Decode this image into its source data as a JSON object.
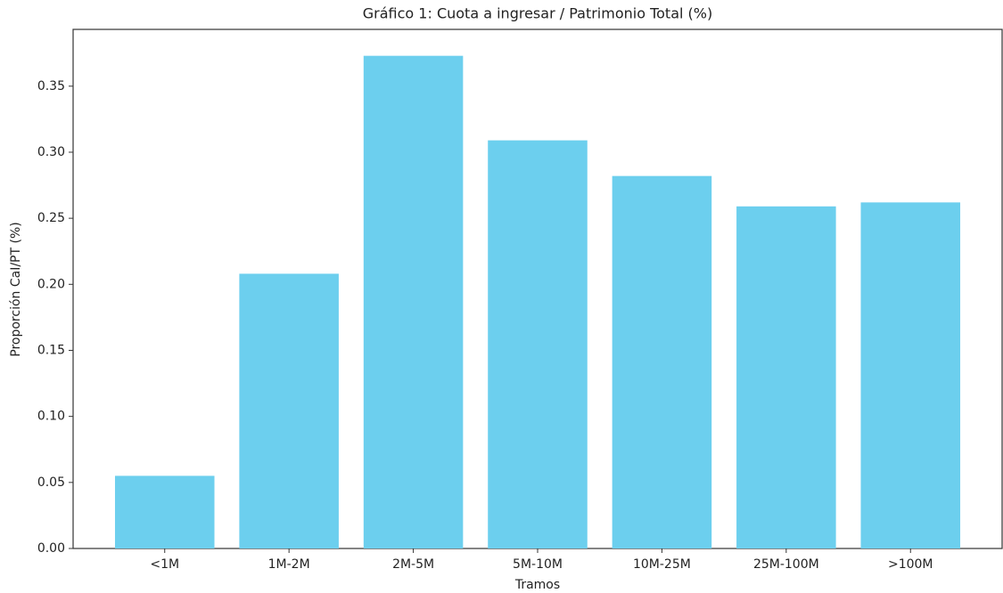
{
  "chart_data": {
    "type": "bar",
    "title": "Gráfico 1: Cuota a ingresar / Patrimonio Total (%)",
    "x_label": "Tramos",
    "y_label": "Proporción CaI/PT (%)",
    "categories": [
      "<1M",
      "1M-2M",
      "2M-5M",
      "5M-10M",
      "10M-25M",
      "25M-100M",
      ">100M"
    ],
    "values": [
      0.055,
      0.208,
      0.373,
      0.309,
      0.282,
      0.259,
      0.262
    ],
    "color": "#6ccfee",
    "ylim": [
      0,
      0.393
    ],
    "yticks": [
      {
        "value": 0,
        "label": "0.00"
      },
      0.05,
      {
        "value": 0.1,
        "label": "0.10"
      },
      0.15,
      {
        "value": 0.2,
        "label": "0.20"
      },
      0.25,
      {
        "value": 0.3,
        "label": "0.30"
      },
      0.35
    ],
    "grid": false
  }
}
